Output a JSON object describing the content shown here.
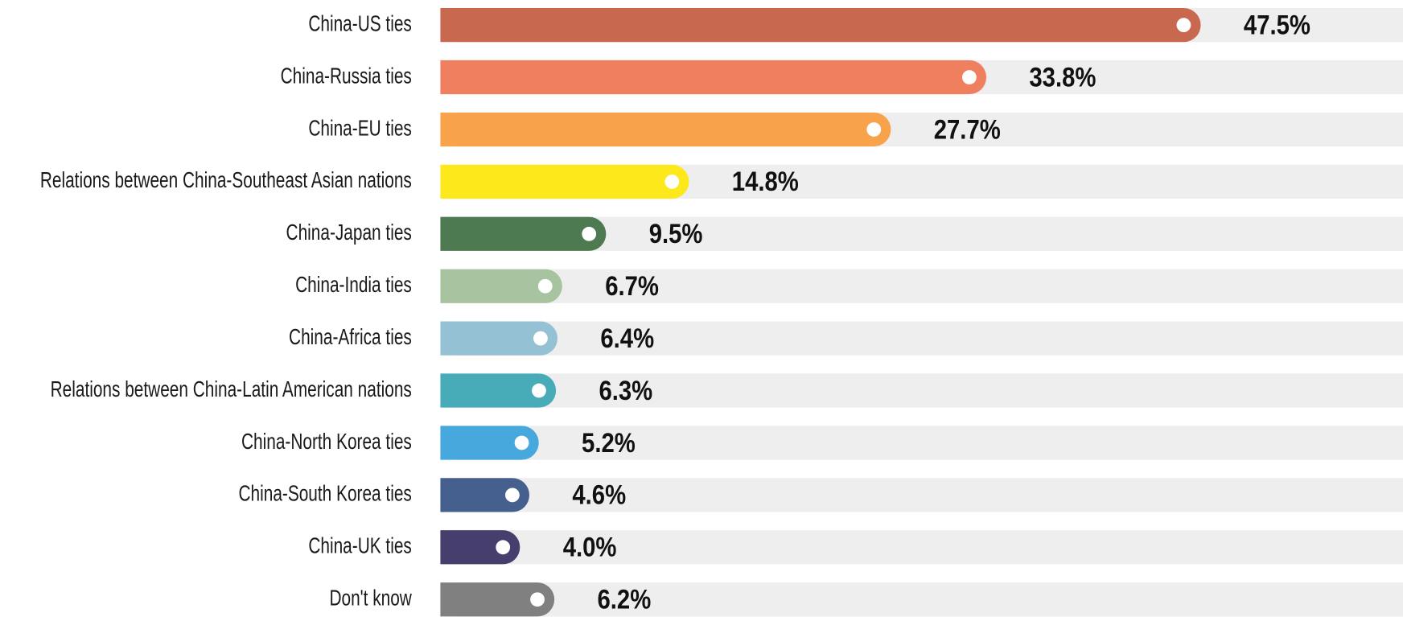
{
  "chart_data": {
    "type": "bar",
    "orientation": "horizontal",
    "categories": [
      "China-US ties",
      "China-Russia ties",
      "China-EU ties",
      "Relations between China-Southeast Asian nations",
      "China-Japan ties",
      "China-India ties",
      "China-Africa ties",
      "Relations between China-Latin American nations",
      "China-North Korea ties",
      "China-South Korea ties",
      "China-UK ties",
      "Don't know"
    ],
    "values": [
      47.5,
      33.8,
      27.7,
      14.8,
      9.5,
      6.7,
      6.4,
      6.3,
      5.2,
      4.6,
      4.0,
      6.2
    ],
    "value_labels": [
      "47.5%",
      "33.8%",
      "27.7%",
      "14.8%",
      "9.5%",
      "6.7%",
      "6.4%",
      "6.3%",
      "5.2%",
      "4.6%",
      "4.0%",
      "6.2%"
    ],
    "colors": [
      "#c8694f",
      "#f07f60",
      "#f9a24c",
      "#fde81c",
      "#4e7a52",
      "#a8c3a0",
      "#95c1d5",
      "#47abb8",
      "#46a8dc",
      "#45608f",
      "#463f6e",
      "#808080"
    ]
  }
}
